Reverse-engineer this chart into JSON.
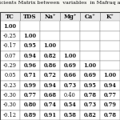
{
  "title_partial": "icients Matrix between  variables  in Mafraq a",
  "columns": [
    "TC",
    "TDS",
    "Na⁺",
    "Mg⁺",
    "Ca⁺",
    "K⁺"
  ],
  "data": [
    [
      "1.00",
      "",
      "",
      "",
      "",
      ""
    ],
    [
      "-0.25",
      "1.00",
      "",
      "",
      "",
      ""
    ],
    [
      "-0.17",
      "0.95",
      "1.00",
      "",
      "",
      ""
    ],
    [
      "0.07",
      "0.94",
      "0.82",
      "1.00",
      "",
      ""
    ],
    [
      "-0.29",
      "0.96",
      "0.86",
      "0.69",
      "1.00",
      ""
    ],
    [
      "0.05",
      "0.71",
      "0.72",
      "0.66",
      "0.69",
      "1.00"
    ],
    [
      "-0.23",
      "0.99",
      "0.94",
      "0.73",
      "0.95",
      "0.94"
    ],
    [
      "-0.30",
      "0.77",
      "0.68",
      "0.40",
      "0.78",
      "0.77"
    ],
    [
      "-0.30",
      "0.80",
      "0.74",
      "0.54",
      "0.73",
      "0.79"
    ],
    [
      "-0.12",
      "0.89",
      "0.91",
      "0.58",
      "0.82",
      "0.78"
    ]
  ],
  "bold_threshold": 0.5,
  "header_bg": "#e8e8e8",
  "bg_color": "#f5f5f0",
  "cell_bg": "#ffffff",
  "font_size": 4.8,
  "header_font_size": 5.0,
  "title_font_size": 4.6,
  "border_color": "#888888",
  "text_color": "#111111"
}
